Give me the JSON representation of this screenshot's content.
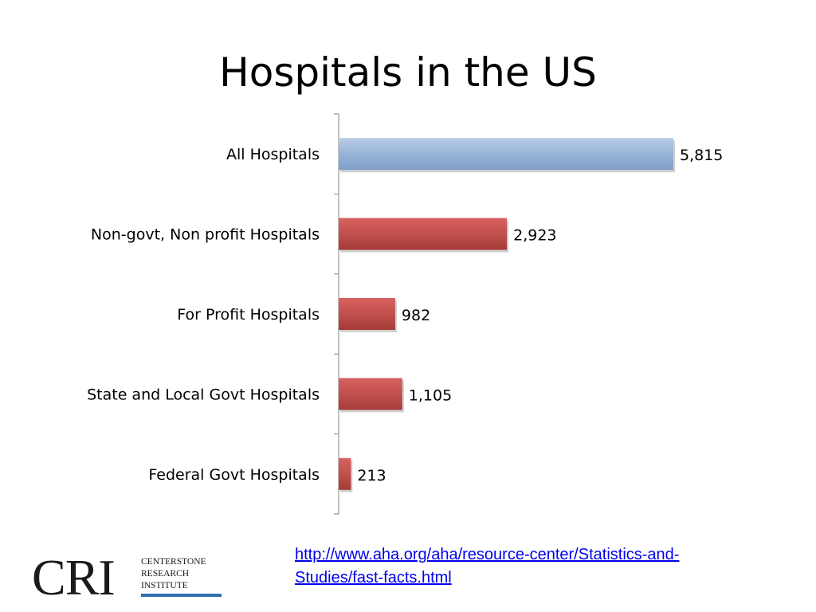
{
  "slide": {
    "title": "Hospitals in the US"
  },
  "chart_data": {
    "type": "bar",
    "orientation": "horizontal",
    "categories": [
      "All Hospitals",
      "Non-govt, Non profit Hospitals",
      "For Profit Hospitals",
      "State and Local Govt Hospitals",
      "Federal Govt Hospitals"
    ],
    "values": [
      5815,
      2923,
      982,
      1105,
      213
    ],
    "value_labels": [
      "5,815",
      "2,923",
      "982",
      "1,105",
      "213"
    ],
    "bar_colors": [
      "#95b3d7",
      "#c0504d",
      "#c0504d",
      "#c0504d",
      "#c0504d"
    ],
    "xlim": [
      0,
      5815
    ],
    "grid": false,
    "legend": "none"
  },
  "source": {
    "link_text": "http://www.aha.org/aha/resource-center/Statistics-and-Studies/fast-facts.html"
  },
  "logo": {
    "mark": "CRI",
    "line1": "CENTERSTONE",
    "line2": "RESEARCH",
    "line3": "INSTITUTE",
    "accent_color": "#2f6fb0"
  }
}
